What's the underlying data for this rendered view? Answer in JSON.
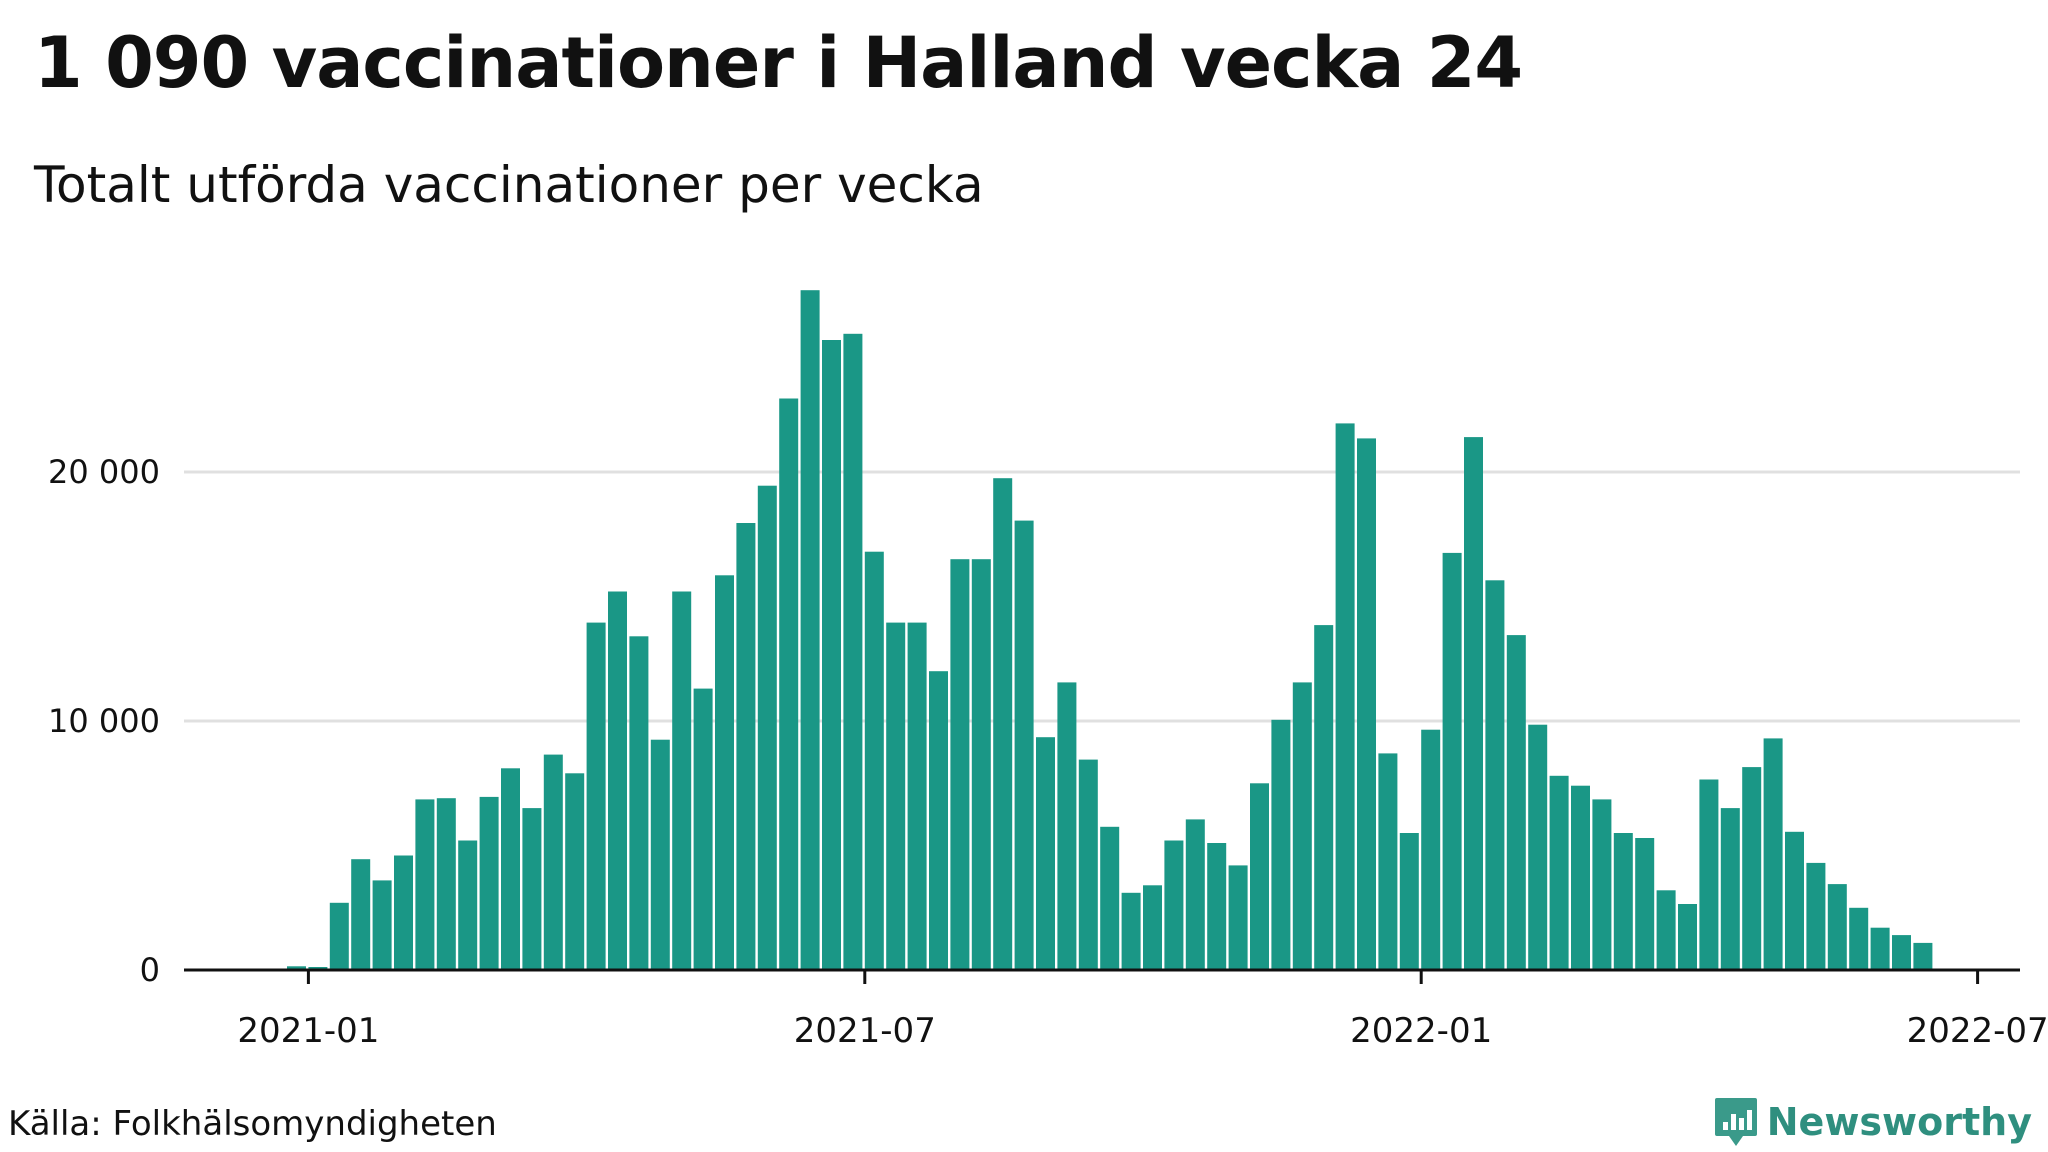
{
  "title": "1 090 vaccinationer i Halland vecka 24",
  "subtitle": "Totalt utförda vaccinationer per vecka",
  "source": "Källa: Folkhälsomyndigheten",
  "brand": "Newsworthy",
  "colors": {
    "bar": "#1a9786",
    "grid": "#e0e0e0",
    "axis": "#111111",
    "brand": "#2f8f7f"
  },
  "chart_data": {
    "type": "bar",
    "title": "1 090 vaccinationer i Halland vecka 24",
    "subtitle": "Totalt utförda vaccinationer per vecka",
    "xlabel": "",
    "ylabel": "",
    "ylim": [
      0,
      27500
    ],
    "yticks": [
      0,
      10000,
      20000
    ],
    "ytick_labels": [
      "0",
      "10 000",
      "20 000"
    ],
    "x_labels": [
      {
        "label": "2021-01",
        "week": 0
      },
      {
        "label": "2021-07",
        "week": 26
      },
      {
        "label": "2022-01",
        "week": 52
      },
      {
        "label": "2022-07",
        "week": 78
      }
    ],
    "first_week_label": "2020-w53",
    "values": [
      150,
      120,
      2700,
      4450,
      3600,
      4600,
      6850,
      6900,
      5200,
      6950,
      8100,
      6500,
      8650,
      7900,
      13950,
      15200,
      13400,
      9250,
      15200,
      11300,
      15850,
      17950,
      19450,
      22950,
      27300,
      25300,
      25550,
      16800,
      13950,
      13950,
      12000,
      16500,
      16500,
      19750,
      18050,
      9350,
      11550,
      8450,
      5750,
      3100,
      3400,
      5200,
      6050,
      5100,
      4200,
      7500,
      10050,
      11550,
      13850,
      21950,
      21350,
      8700,
      5500,
      9650,
      16750,
      21400,
      15650,
      13450,
      9850,
      7800,
      7400,
      6850,
      5500,
      5300,
      3200,
      2650,
      7650,
      6500,
      8150,
      9300,
      5550,
      4300,
      3450,
      2500,
      1700,
      1400,
      1090
    ]
  }
}
